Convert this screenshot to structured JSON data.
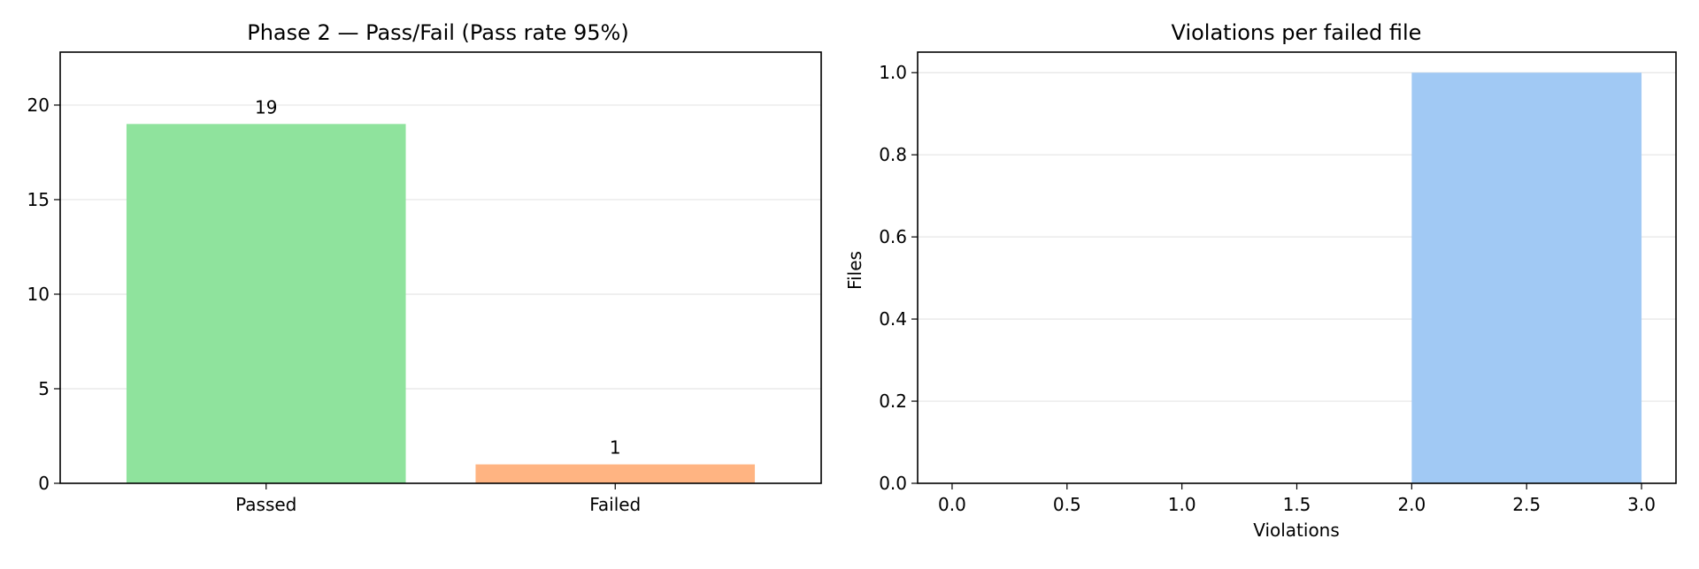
{
  "chart_data": [
    {
      "type": "bar",
      "title": "Phase 2 — Pass/Fail (Pass rate 95%)",
      "xlabel": "",
      "ylabel": "",
      "categories": [
        "Passed",
        "Failed"
      ],
      "values": [
        19,
        1
      ],
      "data_labels": [
        "19",
        "1"
      ],
      "colors": [
        "#8fe39d",
        "#ffb482"
      ],
      "ylim": [
        0,
        22.8
      ],
      "yticks": [
        0,
        5,
        10,
        15,
        20
      ],
      "ytick_labels": [
        "0",
        "5",
        "10",
        "15",
        "20"
      ],
      "grid": "y"
    },
    {
      "type": "bar",
      "subtype": "histogram",
      "title": "Violations per failed file",
      "xlabel": "Violations",
      "ylabel": "Files",
      "bins": [
        {
          "start": 2.0,
          "end": 3.0,
          "count": 1
        }
      ],
      "color": "#a1c9f4",
      "xlim": [
        -0.15,
        3.15
      ],
      "ylim": [
        0,
        1.05
      ],
      "xticks": [
        0,
        0.5,
        1,
        1.5,
        2,
        2.5,
        3
      ],
      "xtick_labels": [
        "0.0",
        "0.5",
        "1.0",
        "1.5",
        "2.0",
        "2.5",
        "3.0"
      ],
      "yticks": [
        0,
        0.2,
        0.4,
        0.6,
        0.8,
        1.0
      ],
      "ytick_labels": [
        "0.0",
        "0.2",
        "0.4",
        "0.6",
        "0.8",
        "1.0"
      ],
      "grid": "y"
    }
  ]
}
